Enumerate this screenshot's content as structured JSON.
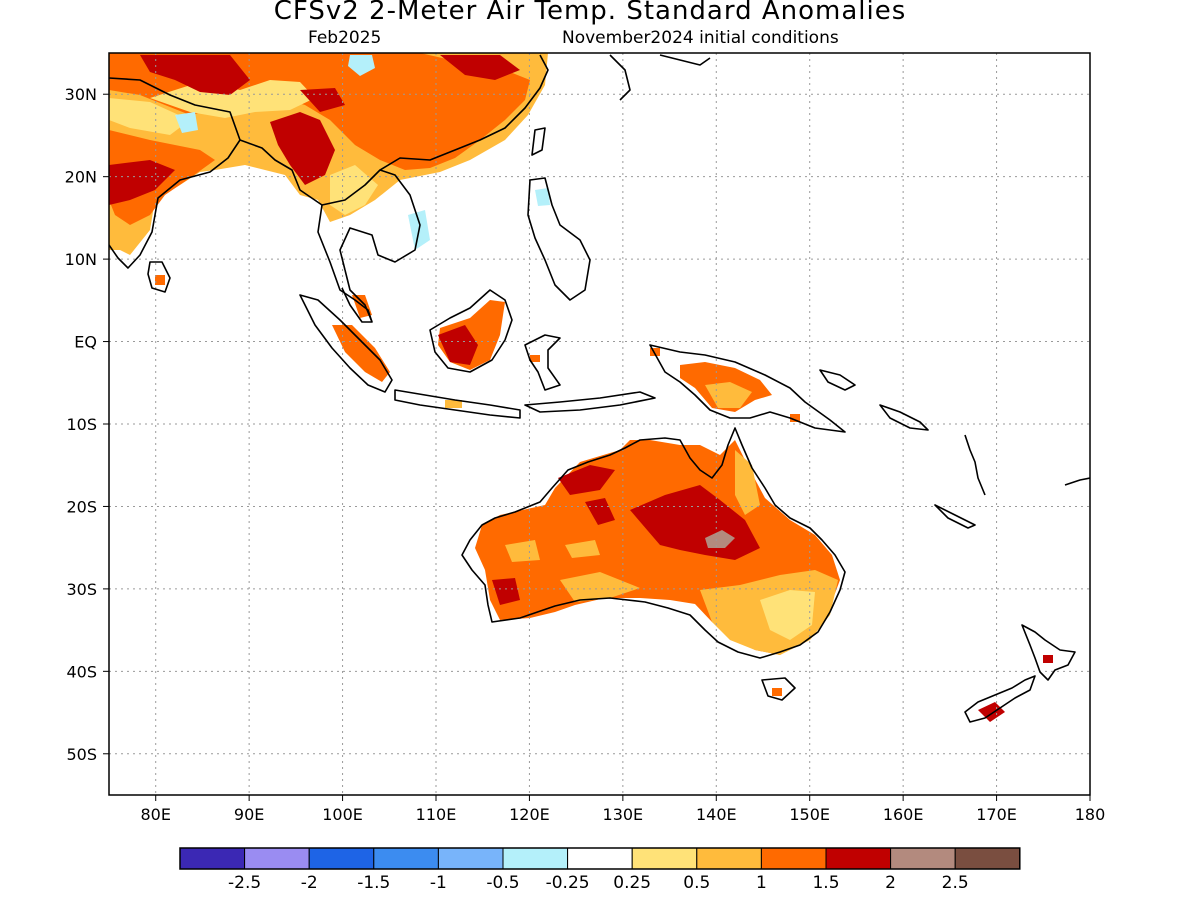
{
  "title": "CFSv2 2-Meter Air Temp. Standard Anomalies",
  "subtitle_left": "Feb2025",
  "subtitle_right": "November2024 initial conditions",
  "map": {
    "lon_range": [
      75,
      180
    ],
    "lat_range": [
      -55,
      35
    ],
    "grid": true,
    "lat_ticks": [
      {
        "value": 30,
        "label": "30N"
      },
      {
        "value": 20,
        "label": "20N"
      },
      {
        "value": 10,
        "label": "10N"
      },
      {
        "value": 0,
        "label": "EQ"
      },
      {
        "value": -10,
        "label": "10S"
      },
      {
        "value": -20,
        "label": "20S"
      },
      {
        "value": -30,
        "label": "30S"
      },
      {
        "value": -40,
        "label": "40S"
      },
      {
        "value": -50,
        "label": "50S"
      }
    ],
    "lon_ticks": [
      {
        "value": 80,
        "label": "80E"
      },
      {
        "value": 90,
        "label": "90E"
      },
      {
        "value": 100,
        "label": "100E"
      },
      {
        "value": 110,
        "label": "110E"
      },
      {
        "value": 120,
        "label": "120E"
      },
      {
        "value": 130,
        "label": "130E"
      },
      {
        "value": 140,
        "label": "140E"
      },
      {
        "value": 150,
        "label": "150E"
      },
      {
        "value": 160,
        "label": "160E"
      },
      {
        "value": 170,
        "label": "170E"
      },
      {
        "value": 180,
        "label": "180"
      }
    ]
  },
  "colorbar": {
    "colors": [
      "#3b28b4",
      "#9a8cf2",
      "#1e64e6",
      "#3c8cf0",
      "#78b4fa",
      "#b4f0fa",
      "#ffffff",
      "#ffe278",
      "#ffbb3c",
      "#ff6a00",
      "#c00000",
      "#b38a7e",
      "#7a4e40"
    ],
    "labels": [
      "-2.5",
      "-2",
      "-1.5",
      "-1",
      "-0.5",
      "-0.25",
      "0.25",
      "0.5",
      "1",
      "1.5",
      "2",
      "2.5"
    ]
  },
  "anomaly_colors": {
    "moderate": "#ffbb3c",
    "light": "#ffe278",
    "strong": "#ff6a00",
    "very_strong": "#c00000",
    "extreme": "#b38a7e",
    "cool": "#b4f0fa"
  }
}
